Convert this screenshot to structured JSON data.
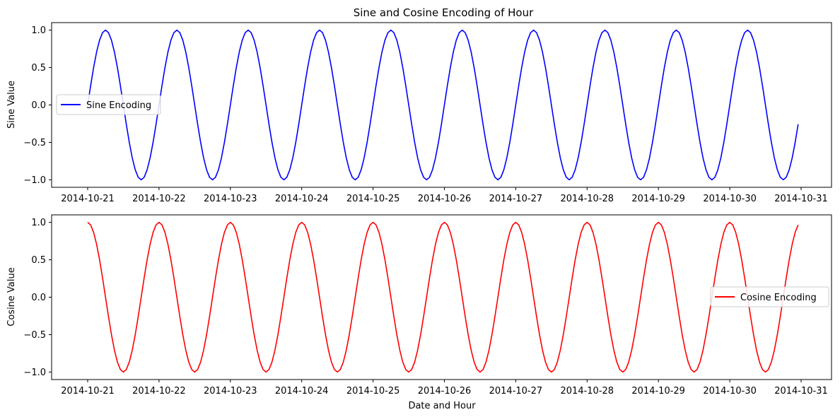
{
  "chart_data": [
    {
      "type": "line",
      "title": "Sine and Cosine Encoding of Hour",
      "xlabel": "",
      "ylabel": "Sine Value",
      "x_range": [
        "2014-10-21T00:00",
        "2014-10-30T23:00"
      ],
      "x_step_hours": 1,
      "xticks": [
        "2014-10-21",
        "2014-10-22",
        "2014-10-23",
        "2014-10-24",
        "2014-10-25",
        "2014-10-26",
        "2014-10-27",
        "2014-10-28",
        "2014-10-29",
        "2014-10-30",
        "2014-10-31"
      ],
      "yticks": [
        "1.0",
        "0.5",
        "0.0",
        "−0.5",
        "−1.0"
      ],
      "ylim": [
        -1.1,
        1.1
      ],
      "series": [
        {
          "name": "Sine Encoding",
          "function": "sin(2*pi*hour/24)",
          "color": "#0000ff"
        }
      ],
      "legend_position": "center-left",
      "grid": false
    },
    {
      "type": "line",
      "title": "",
      "xlabel": "Date and Hour",
      "ylabel": "Cosine Value",
      "x_range": [
        "2014-10-21T00:00",
        "2014-10-30T23:00"
      ],
      "x_step_hours": 1,
      "xticks": [
        "2014-10-21",
        "2014-10-22",
        "2014-10-23",
        "2014-10-24",
        "2014-10-25",
        "2014-10-26",
        "2014-10-27",
        "2014-10-28",
        "2014-10-29",
        "2014-10-30",
        "2014-10-31"
      ],
      "yticks": [
        "1.0",
        "0.5",
        "0.0",
        "−0.5",
        "−1.0"
      ],
      "ylim": [
        -1.1,
        1.1
      ],
      "series": [
        {
          "name": "Cosine Encoding",
          "function": "cos(2*pi*hour/24)",
          "color": "#ff0000"
        }
      ],
      "legend_position": "center-right",
      "grid": false
    }
  ]
}
